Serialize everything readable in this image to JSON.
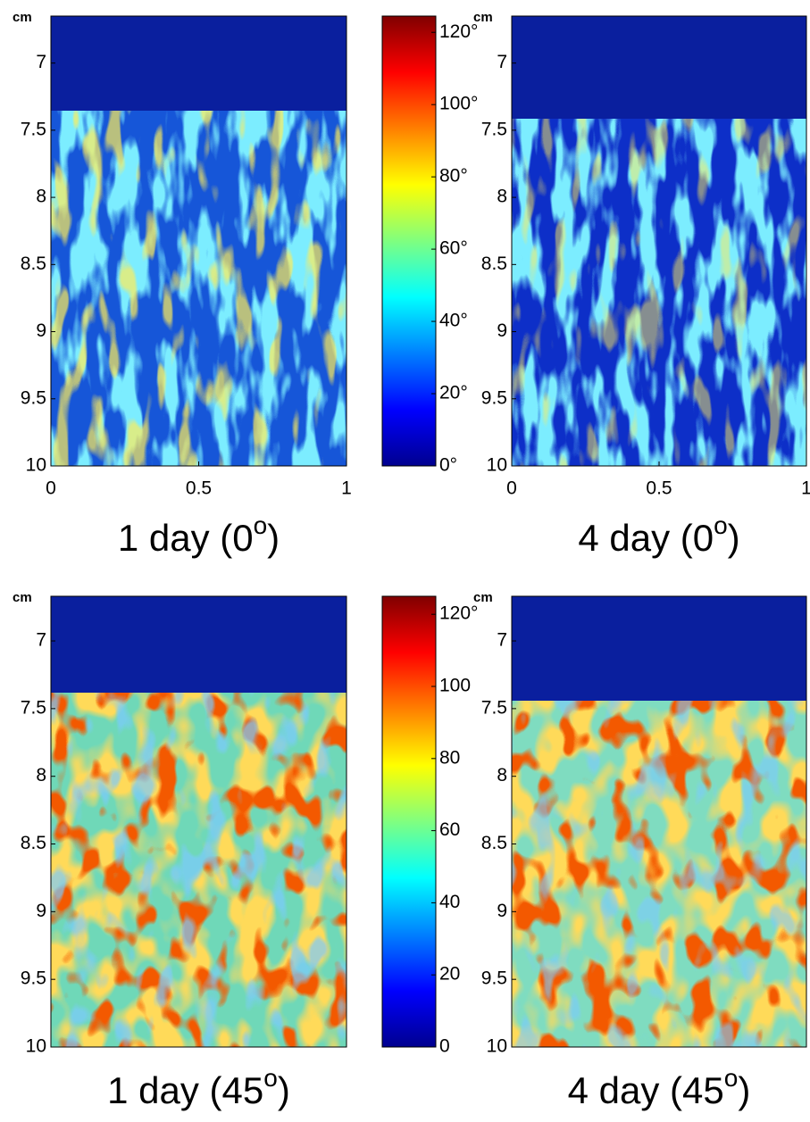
{
  "chart_data": [
    {
      "type": "heatmap",
      "title_parts": [
        "1 day (0",
        "o",
        ")"
      ],
      "y_unit": "cm",
      "ylim": [
        6.65,
        10
      ],
      "yticks": [
        7,
        7.5,
        8,
        8.5,
        9,
        9.5,
        10
      ],
      "xlim": [
        0,
        1
      ],
      "xticks": [
        0,
        0.5,
        1
      ],
      "colorbar": {
        "lim": [
          0,
          124.5
        ],
        "ticks": [
          {
            "value": 0,
            "label": "0°"
          },
          {
            "value": 20,
            "label": "20°"
          },
          {
            "value": 40,
            "label": "40°"
          },
          {
            "value": 60,
            "label": "60°"
          },
          {
            "value": 80,
            "label": "80°"
          },
          {
            "value": 100,
            "label": "100°"
          },
          {
            "value": 120,
            "label": "120°"
          }
        ]
      }
    },
    {
      "type": "heatmap",
      "title_parts": [
        "4 day (0",
        "o",
        ")"
      ],
      "y_unit": "cm",
      "ylim": [
        6.65,
        10
      ],
      "yticks": [
        7,
        7.5,
        8,
        8.5,
        9,
        9.5,
        10
      ],
      "xlim": [
        0,
        1
      ],
      "xticks": [
        0,
        0.5,
        1
      ]
    },
    {
      "type": "heatmap",
      "title_parts": [
        "1 day (45",
        "o",
        ")"
      ],
      "y_unit": "cm",
      "ylim": [
        6.67,
        10
      ],
      "yticks": [
        7,
        7.5,
        8,
        8.5,
        9,
        9.5,
        10
      ],
      "xlim": [
        0,
        1
      ],
      "colorbar": {
        "lim": [
          0,
          125
        ],
        "ticks": [
          0,
          20,
          40,
          60,
          80,
          100,
          {
            "value": 120,
            "label": "120°"
          }
        ]
      }
    },
    {
      "type": "heatmap",
      "title_parts": [
        "4 day (45",
        "o",
        ")"
      ],
      "y_unit": "cm",
      "ylim": [
        6.67,
        10
      ],
      "yticks": [
        7,
        7.5,
        8,
        8.5,
        9,
        9.5,
        10
      ],
      "xlim": [
        0,
        1
      ]
    }
  ]
}
